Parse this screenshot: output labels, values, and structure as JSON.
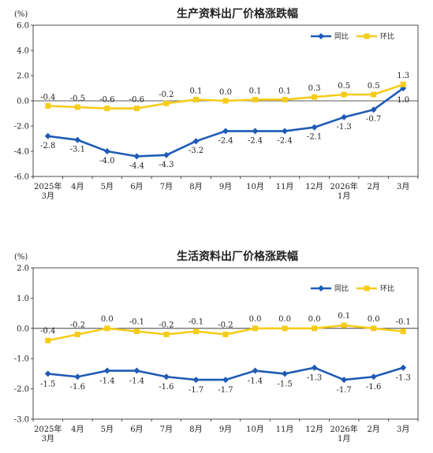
{
  "colors": {
    "yoy": "#1f5bb5",
    "mom": "#f5cc1a",
    "axis": "#222222",
    "grid": "#e8e8e8"
  },
  "chart_data": [
    {
      "type": "line",
      "title": "生产资料出厂价格涨跌幅",
      "unit": "(%)",
      "ylim": [
        -6.0,
        6.0
      ],
      "yticks": [
        "6.0",
        "4.0",
        "2.0",
        "0.0",
        "-2.0",
        "-4.0",
        "-6.0"
      ],
      "ytick_values": [
        6,
        4,
        2,
        0,
        -2,
        -4,
        -6
      ],
      "categories": [
        [
          "2025年",
          "3月"
        ],
        [
          "4月"
        ],
        [
          "5月"
        ],
        [
          "6月"
        ],
        [
          "7月"
        ],
        [
          "8月"
        ],
        [
          "9月"
        ],
        [
          "10月"
        ],
        [
          "11月"
        ],
        [
          "12月"
        ],
        [
          "2026年",
          "1月"
        ],
        [
          "2月"
        ],
        [
          "3月"
        ]
      ],
      "legend": "top-right",
      "series": [
        {
          "name": "同比",
          "key": "yoy",
          "values": [
            -2.8,
            -3.1,
            -4.0,
            -4.4,
            -4.3,
            -3.2,
            -2.4,
            -2.4,
            -2.4,
            -2.1,
            -1.3,
            -0.7,
            1.0
          ],
          "labels": [
            "-2.8",
            "-3.1",
            "-4.0",
            "-4.4",
            "-4.3",
            "-3.2",
            "-2.4",
            "-2.4",
            "-2.4",
            "-2.1",
            "-1.3",
            "-0.7",
            "1.0"
          ]
        },
        {
          "name": "环比",
          "key": "mom",
          "values": [
            -0.4,
            -0.5,
            -0.6,
            -0.6,
            -0.2,
            0.1,
            0.0,
            0.1,
            0.1,
            0.3,
            0.5,
            0.5,
            1.3
          ],
          "labels": [
            "-0.4",
            "-0.5",
            "-0.6",
            "-0.6",
            "-0.2",
            "0.1",
            "0.0",
            "0.1",
            "0.1",
            "0.3",
            "0.5",
            "0.5",
            "1.3"
          ]
        }
      ]
    },
    {
      "type": "line",
      "title": "生活资料出厂价格涨跌幅",
      "unit": "(%)",
      "ylim": [
        -3.0,
        2.0
      ],
      "yticks": [
        "2.0",
        "1.0",
        "0.0",
        "-1.0",
        "-2.0",
        "-3.0"
      ],
      "ytick_values": [
        2,
        1,
        0,
        -1,
        -2,
        -3
      ],
      "categories": [
        [
          "2025年",
          "3月"
        ],
        [
          "4月"
        ],
        [
          "5月"
        ],
        [
          "6月"
        ],
        [
          "7月"
        ],
        [
          "8月"
        ],
        [
          "9月"
        ],
        [
          "10月"
        ],
        [
          "11月"
        ],
        [
          "12月"
        ],
        [
          "2026年",
          "1月"
        ],
        [
          "2月"
        ],
        [
          "3月"
        ]
      ],
      "legend": "top-right",
      "series": [
        {
          "name": "同比",
          "key": "yoy",
          "values": [
            -1.5,
            -1.6,
            -1.4,
            -1.4,
            -1.6,
            -1.7,
            -1.7,
            -1.4,
            -1.5,
            -1.3,
            -1.7,
            -1.6,
            -1.3
          ],
          "labels": [
            "-1.5",
            "-1.6",
            "-1.4",
            "-1.4",
            "-1.6",
            "-1.7",
            "-1.7",
            "-1.4",
            "-1.5",
            "-1.3",
            "-1.7",
            "-1.6",
            "-1.3"
          ]
        },
        {
          "name": "环比",
          "key": "mom",
          "values": [
            -0.4,
            -0.2,
            0.0,
            -0.1,
            -0.2,
            -0.1,
            -0.2,
            0.0,
            0.0,
            0.0,
            0.1,
            0.0,
            -0.1
          ],
          "labels": [
            "-0.4",
            "-0.2",
            "0.0",
            "-0.1",
            "-0.2",
            "-0.1",
            "-0.2",
            "0.0",
            "0.0",
            "0.0",
            "0.1",
            "0.0",
            "-0.1"
          ]
        }
      ]
    }
  ]
}
